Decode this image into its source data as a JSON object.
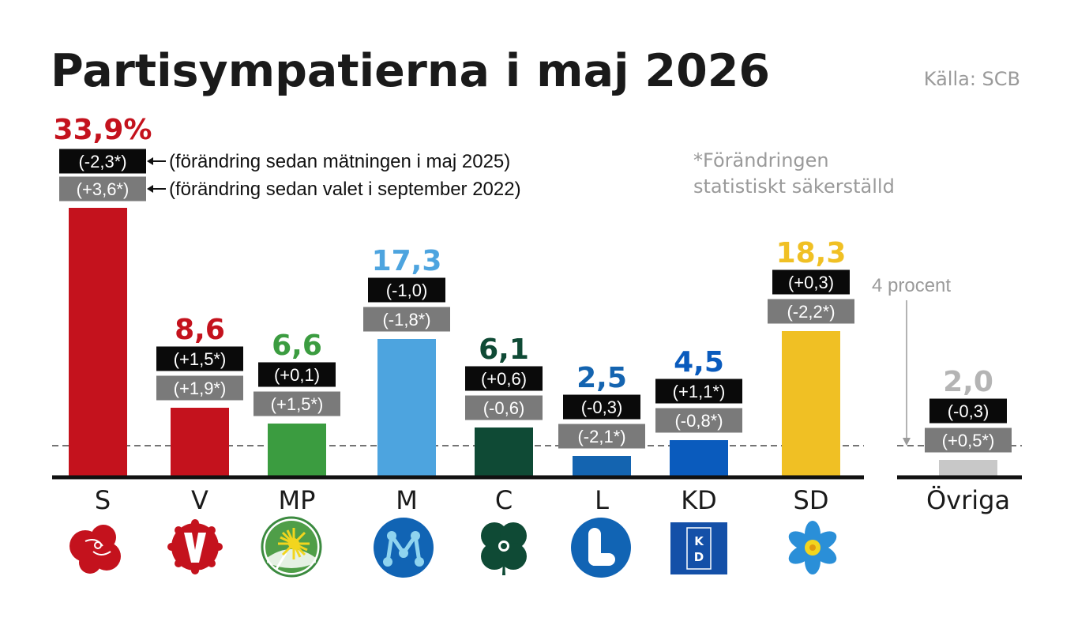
{
  "chart_data": {
    "type": "bar",
    "title": "Partisympatierna i maj 2026",
    "source": "Källa: SCB",
    "legend_notes": [
      "(förändring sedan mätningen i maj 2025)",
      "(förändring sedan valet i september 2022)"
    ],
    "footnote": [
      "*Förändringen",
      "statistiskt säkerställd"
    ],
    "threshold": {
      "value": 4,
      "label": "4 procent"
    },
    "categories": [
      "S",
      "V",
      "MP",
      "M",
      "C",
      "L",
      "KD",
      "SD",
      "Övriga"
    ],
    "values": [
      33.9,
      8.6,
      6.6,
      17.3,
      6.1,
      2.5,
      4.5,
      18.3,
      2.0
    ],
    "value_labels": [
      "33,9%",
      "8,6",
      "6,6",
      "17,3",
      "6,1",
      "2,5",
      "4,5",
      "18,3",
      "2,0"
    ],
    "change_since_may_2025": [
      "(-2,3*)",
      "(+1,5*)",
      "(+0,1)",
      "(-1,0)",
      "(+0,6)",
      "(-0,3)",
      "(+1,1*)",
      "(+0,3)",
      "(-0,3)"
    ],
    "change_since_election_2022": [
      "(+3,6*)",
      "(+1,9*)",
      "(+1,5*)",
      "(-1,8*)",
      "(-0,6)",
      "(-2,1*)",
      "(-0,8*)",
      "(-2,2*)",
      "(+0,5*)"
    ],
    "colors": [
      "#c4121d",
      "#c4121d",
      "#3b9c40",
      "#4da4df",
      "#0f4a35",
      "#1464b0",
      "#0a5bbd",
      "#f0c024",
      "#c8c8c8"
    ],
    "label_colors": [
      "#c4121d",
      "#c4121d",
      "#3b9c40",
      "#4da4df",
      "#0f4a35",
      "#1464b0",
      "#0a5bbd",
      "#f0c024",
      "#b4b4b4"
    ],
    "logos": [
      "rose-logo",
      "carnation-v-logo",
      "dandelion-logo",
      "m-logo",
      "clover-logo",
      "l-logo",
      "kd-logo",
      "anemone-logo",
      "none"
    ],
    "ylim": [
      0,
      34
    ]
  }
}
